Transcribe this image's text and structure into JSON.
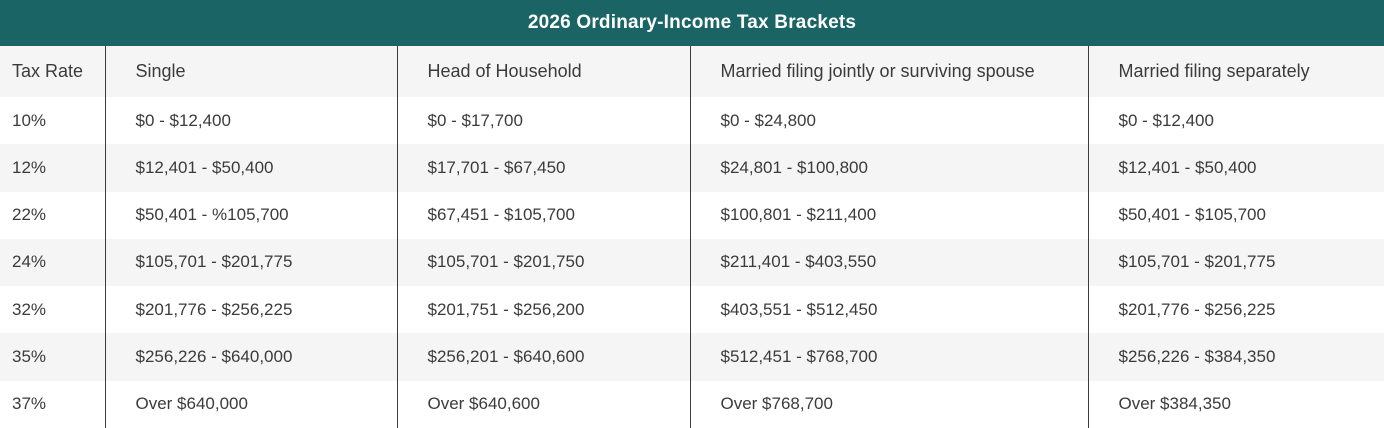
{
  "title": "2026 Ordinary-Income Tax Brackets",
  "colors": {
    "accent_teal": "#1a6466",
    "title_text": "#ffffff",
    "row_white": "#ffffff",
    "row_alt_gray": "#f5f5f5",
    "body_text": "#3b3b3b",
    "column_divider": "#3c3c3c"
  },
  "chart_data": {
    "type": "table",
    "title": "2026 Ordinary-Income Tax Brackets",
    "columns": [
      "Tax Rate",
      "Single",
      "Head of Household",
      "Married filing jointly or surviving spouse",
      "Married filing separately"
    ],
    "rows": [
      [
        "10%",
        "$0 - $12,400",
        "$0 - $17,700",
        "$0 - $24,800",
        "$0 - $12,400"
      ],
      [
        "12%",
        "$12,401 - $50,400",
        "$17,701 - $67,450",
        "$24,801 - $100,800",
        "$12,401 - $50,400"
      ],
      [
        "22%",
        "$50,401 - %105,700",
        "$67,451 - $105,700",
        "$100,801 - $211,400",
        "$50,401 - $105,700"
      ],
      [
        "24%",
        "$105,701 - $201,775",
        "$105,701 - $201,750",
        "$211,401 - $403,550",
        "$105,701 - $201,775"
      ],
      [
        "32%",
        "$201,776 - $256,225",
        "$201,751 - $256,200",
        "$403,551 - $512,450",
        "$201,776 - $256,225"
      ],
      [
        "35%",
        "$256,226 - $640,000",
        "$256,201 - $640,600",
        "$512,451 - $768,700",
        "$256,226 - $384,350"
      ],
      [
        "37%",
        "Over $640,000",
        "Over $640,600",
        "Over $768,700",
        "Over $384,350"
      ]
    ]
  }
}
